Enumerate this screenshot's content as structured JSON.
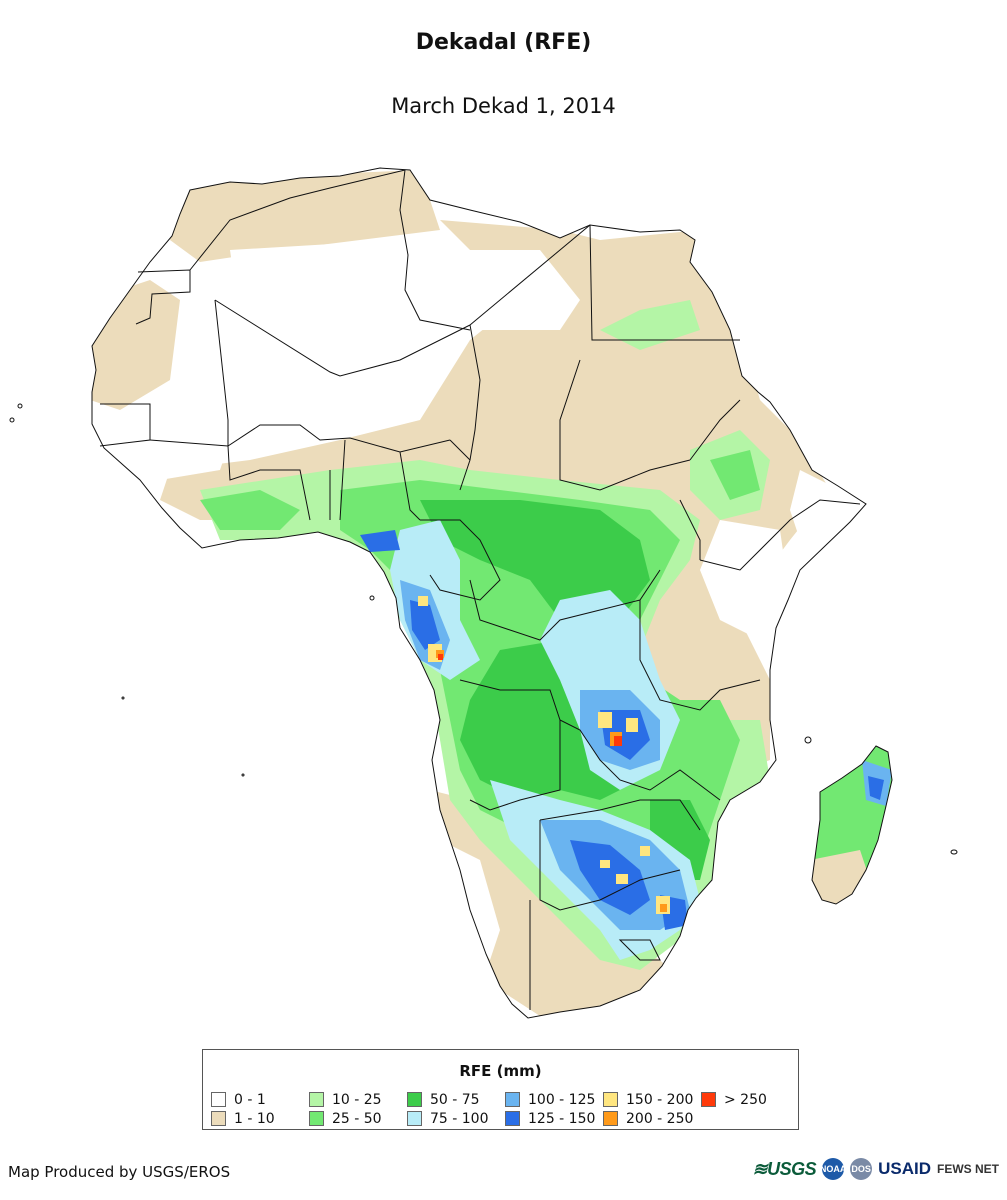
{
  "title": "Dekadal (RFE)",
  "subtitle": "March Dekad 1, 2014",
  "legend": {
    "title": "RFE (mm)",
    "items": [
      {
        "label": "0 - 1",
        "color": "#ffffff"
      },
      {
        "label": "1 - 10",
        "color": "#ecdcbb"
      },
      {
        "label": "10 - 25",
        "color": "#b4f5a6"
      },
      {
        "label": "25 - 50",
        "color": "#72e872"
      },
      {
        "label": "50 - 75",
        "color": "#3ccc4a"
      },
      {
        "label": "75 - 100",
        "color": "#b8ecf7"
      },
      {
        "label": "100 - 125",
        "color": "#6ab4f0"
      },
      {
        "label": "125 - 150",
        "color": "#2a6ee6"
      },
      {
        "label": "150 - 200",
        "color": "#ffe680"
      },
      {
        "label": "200 - 250",
        "color": "#ff9a1a"
      },
      {
        "label": "> 250",
        "color": "#ff3a0a"
      }
    ]
  },
  "credit": "Map Produced by USGS/EROS",
  "logos": {
    "usgs": "≋USGS",
    "noaa": "NOAA",
    "dos": "DOS",
    "usaid": "USAID",
    "fews": "FEWS NET"
  }
}
